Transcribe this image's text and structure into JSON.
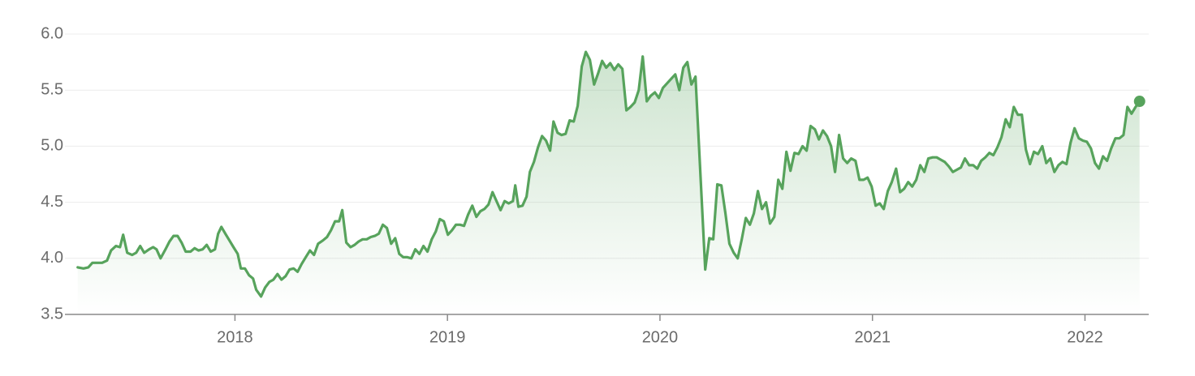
{
  "chart_data": {
    "type": "line",
    "color": "#57a35c",
    "fill_area": true,
    "end_marker": true,
    "grid": true,
    "xlim": [
      2017.2,
      2022.3
    ],
    "xticks": [
      2018,
      2019,
      2020,
      2021,
      2022
    ],
    "ylim": [
      3.5,
      6.0
    ],
    "yticks": [
      {
        "value": 6.0,
        "label": "6.0"
      },
      5.5,
      {
        "value": 5.0,
        "label": "5.0"
      },
      4.5,
      {
        "value": 4.0,
        "label": "4.0"
      },
      3.5
    ],
    "x": [
      2017.26,
      2017.287,
      2017.31,
      2017.329,
      2017.375,
      2017.398,
      2017.417,
      2017.44,
      2017.459,
      2017.474,
      2017.493,
      2017.516,
      2017.535,
      2017.554,
      2017.573,
      2017.596,
      2017.615,
      2017.631,
      2017.65,
      2017.673,
      2017.692,
      2017.711,
      2017.73,
      2017.749,
      2017.768,
      2017.791,
      2017.81,
      2017.829,
      2017.848,
      2017.867,
      2017.886,
      2017.906,
      2017.921,
      2017.936,
      2017.955,
      2017.974,
      2017.993,
      2018.013,
      2018.028,
      2018.047,
      2018.066,
      2018.085,
      2018.1,
      2018.123,
      2018.142,
      2018.162,
      2018.181,
      2018.2,
      2018.219,
      2018.238,
      2018.257,
      2018.276,
      2018.295,
      2018.314,
      2018.333,
      2018.353,
      2018.372,
      2018.391,
      2018.414,
      2018.433,
      2018.452,
      2018.471,
      2018.49,
      2018.505,
      2018.524,
      2018.544,
      2018.563,
      2018.582,
      2018.601,
      2018.62,
      2018.639,
      2018.658,
      2018.677,
      2018.696,
      2018.715,
      2018.735,
      2018.754,
      2018.773,
      2018.792,
      2018.811,
      2018.83,
      2018.849,
      2018.868,
      2018.887,
      2018.906,
      2018.926,
      2018.945,
      2018.964,
      2018.983,
      2019.002,
      2019.021,
      2019.04,
      2019.059,
      2019.078,
      2019.097,
      2019.117,
      2019.136,
      2019.155,
      2019.174,
      2019.193,
      2019.212,
      2019.231,
      2019.25,
      2019.269,
      2019.288,
      2019.308,
      2019.319,
      2019.334,
      2019.353,
      2019.372,
      2019.388,
      2019.407,
      2019.426,
      2019.445,
      2019.464,
      2019.483,
      2019.499,
      2019.518,
      2019.537,
      2019.556,
      2019.575,
      2019.594,
      2019.613,
      2019.632,
      2019.651,
      2019.67,
      2019.69,
      2019.709,
      2019.728,
      2019.747,
      2019.766,
      2019.785,
      2019.804,
      2019.823,
      2019.842,
      2019.861,
      2019.881,
      2019.9,
      2019.919,
      2019.938,
      2019.957,
      2019.976,
      2019.995,
      2020.014,
      2020.033,
      2020.052,
      2020.072,
      2020.091,
      2020.11,
      2020.129,
      2020.148,
      2020.167,
      2020.213,
      2020.232,
      2020.251,
      2020.27,
      2020.289,
      2020.308,
      2020.327,
      2020.347,
      2020.366,
      2020.385,
      2020.404,
      2020.423,
      2020.442,
      2020.461,
      2020.48,
      2020.499,
      2020.518,
      2020.538,
      2020.557,
      2020.576,
      2020.595,
      2020.614,
      2020.633,
      2020.652,
      2020.671,
      2020.69,
      2020.709,
      2020.729,
      2020.748,
      2020.767,
      2020.786,
      2020.805,
      2020.824,
      2020.843,
      2020.862,
      2020.881,
      2020.9,
      2020.92,
      2020.939,
      2020.958,
      2020.977,
      2020.996,
      2021.015,
      2021.034,
      2021.053,
      2021.072,
      2021.091,
      2021.111,
      2021.13,
      2021.149,
      2021.168,
      2021.187,
      2021.206,
      2021.225,
      2021.244,
      2021.263,
      2021.283,
      2021.302,
      2021.321,
      2021.34,
      2021.359,
      2021.378,
      2021.397,
      2021.416,
      2021.435,
      2021.455,
      2021.474,
      2021.493,
      2021.512,
      2021.531,
      2021.55,
      2021.569,
      2021.588,
      2021.607,
      2021.627,
      2021.646,
      2021.665,
      2021.684,
      2021.703,
      2021.722,
      2021.741,
      2021.76,
      2021.779,
      2021.799,
      2021.818,
      2021.837,
      2021.856,
      2021.875,
      2021.894,
      2021.913,
      2021.932,
      2021.951,
      2021.971,
      2021.99,
      2022.009,
      2022.028,
      2022.047,
      2022.066,
      2022.085,
      2022.104,
      2022.123,
      2022.143,
      2022.162,
      2022.181,
      2022.2,
      2022.219,
      2022.238,
      2022.257
    ],
    "values": [
      3.92,
      3.91,
      3.92,
      3.96,
      3.96,
      3.98,
      4.07,
      4.11,
      4.1,
      4.21,
      4.05,
      4.03,
      4.05,
      4.11,
      4.05,
      4.08,
      4.1,
      4.08,
      4.0,
      4.08,
      4.15,
      4.2,
      4.2,
      4.14,
      4.06,
      4.06,
      4.09,
      4.07,
      4.08,
      4.12,
      4.06,
      4.08,
      4.22,
      4.28,
      4.22,
      4.16,
      4.1,
      4.04,
      3.91,
      3.91,
      3.85,
      3.82,
      3.72,
      3.66,
      3.74,
      3.79,
      3.81,
      3.86,
      3.81,
      3.84,
      3.9,
      3.91,
      3.88,
      3.95,
      4.01,
      4.07,
      4.03,
      4.13,
      4.16,
      4.19,
      4.25,
      4.33,
      4.33,
      4.43,
      4.14,
      4.1,
      4.12,
      4.15,
      4.17,
      4.17,
      4.19,
      4.2,
      4.22,
      4.3,
      4.27,
      4.13,
      4.18,
      4.04,
      4.01,
      4.01,
      4.0,
      4.08,
      4.04,
      4.11,
      4.06,
      4.17,
      4.24,
      4.35,
      4.33,
      4.21,
      4.25,
      4.3,
      4.3,
      4.29,
      4.39,
      4.47,
      4.37,
      4.42,
      4.44,
      4.48,
      4.59,
      4.51,
      4.43,
      4.51,
      4.49,
      4.51,
      4.65,
      4.46,
      4.47,
      4.55,
      4.77,
      4.86,
      4.99,
      5.09,
      5.05,
      4.96,
      5.22,
      5.12,
      5.1,
      5.11,
      5.23,
      5.22,
      5.36,
      5.71,
      5.84,
      5.77,
      5.55,
      5.65,
      5.76,
      5.7,
      5.74,
      5.68,
      5.73,
      5.69,
      5.32,
      5.35,
      5.39,
      5.5,
      5.8,
      5.4,
      5.45,
      5.48,
      5.43,
      5.52,
      5.56,
      5.6,
      5.64,
      5.5,
      5.7,
      5.75,
      5.55,
      5.62,
      3.9,
      4.18,
      4.17,
      4.66,
      4.65,
      4.4,
      4.13,
      4.05,
      4.0,
      4.17,
      4.36,
      4.3,
      4.4,
      4.6,
      4.44,
      4.5,
      4.31,
      4.37,
      4.7,
      4.62,
      4.95,
      4.78,
      4.94,
      4.93,
      5.0,
      4.96,
      5.18,
      5.15,
      5.06,
      5.14,
      5.09,
      5.0,
      4.77,
      5.1,
      4.89,
      4.85,
      4.89,
      4.87,
      4.7,
      4.7,
      4.72,
      4.64,
      4.47,
      4.49,
      4.44,
      4.6,
      4.68,
      4.8,
      4.59,
      4.62,
      4.68,
      4.64,
      4.7,
      4.83,
      4.77,
      4.89,
      4.9,
      4.9,
      4.88,
      4.86,
      4.82,
      4.77,
      4.79,
      4.81,
      4.89,
      4.83,
      4.83,
      4.8,
      4.87,
      4.9,
      4.94,
      4.92,
      4.99,
      5.08,
      5.24,
      5.17,
      5.35,
      5.28,
      5.28,
      4.97,
      4.84,
      4.95,
      4.93,
      5.0,
      4.85,
      4.89,
      4.77,
      4.83,
      4.86,
      4.84,
      5.03,
      5.16,
      5.07,
      5.05,
      5.04,
      4.98,
      4.85,
      4.8,
      4.91,
      4.87,
      4.98,
      5.07,
      5.07,
      5.1,
      5.35,
      5.29,
      5.35,
      5.4
    ]
  }
}
